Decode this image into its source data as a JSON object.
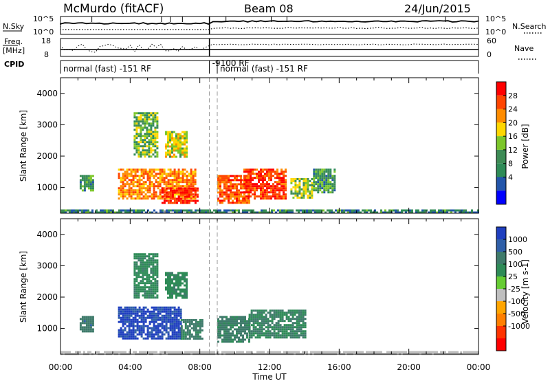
{
  "header": {
    "station": "McMurdo (fitACF)",
    "beam": "Beam 08",
    "date": "24/Jun/2015"
  },
  "top_panels": {
    "nsky_label": "N.Sky",
    "nsky_ticks": [
      "10^5",
      "10^0"
    ],
    "nsearch_label": "N.Search",
    "nsearch_ticks": [
      "10^5",
      "10^0"
    ],
    "freq_label": "Freq.",
    "freq_unit": "[MHz]",
    "freq_ticks": [
      "18",
      "8"
    ],
    "nave_label": "Nave",
    "nave_ticks": [
      "60",
      "0"
    ],
    "cpid_label": "CPID",
    "cpid_segments": [
      {
        "start_h": 0,
        "text": "normal (fast) -151 RF"
      },
      {
        "start_h": 8.55,
        "text": "-9100 RF"
      },
      {
        "start_h": 9.0,
        "text": "normal (fast) -151 RF"
      }
    ]
  },
  "colorbar_power": {
    "label": "Power [dB]",
    "ticks": [
      "28",
      "24",
      "20",
      "16",
      "12",
      "8",
      "4"
    ],
    "colors": [
      "#ff0000",
      "#ff4500",
      "#ff8c00",
      "#ffd700",
      "#7cc62a",
      "#3d8b55",
      "#2e8b57",
      "#2255aa",
      "#0000ff"
    ]
  },
  "colorbar_velocity": {
    "label": "Velocity [m s-1]",
    "ticks": [
      "1000",
      "500",
      "100",
      "25",
      "-25",
      "-100",
      "-500",
      "-1000"
    ],
    "colors": [
      "#1f3fbf",
      "#2f5fa8",
      "#3e7a6a",
      "#2e8b57",
      "#66cc33",
      "#bfbfbf",
      "#ffa500",
      "#ff7f00",
      "#ff3300",
      "#ff0000"
    ]
  },
  "chart_data": [
    {
      "type": "heatmap",
      "title": "Power [dB]",
      "xlabel": "Time UT",
      "ylabel": "Slant Range [km]",
      "x_ticks": [
        "00:00",
        "04:00",
        "08:00",
        "12:00",
        "16:00",
        "20:00",
        "00:00"
      ],
      "y_ticks": [
        "1000",
        "2000",
        "3000",
        "4000"
      ],
      "xlim_hours": [
        0,
        24
      ],
      "ylim_km": [
        180,
        4500
      ],
      "dashed_lines_hours": [
        8.55,
        9.0
      ],
      "echo_regions": [
        {
          "t0": 1.1,
          "t1": 1.9,
          "r0": 900,
          "r1": 1400,
          "value": 10
        },
        {
          "t0": 3.3,
          "t1": 7.8,
          "r0": 650,
          "r1": 1600,
          "value": 22
        },
        {
          "t0": 5.8,
          "t1": 7.9,
          "r0": 500,
          "r1": 1000,
          "value": 28
        },
        {
          "t0": 9.0,
          "t1": 10.8,
          "r0": 500,
          "r1": 1400,
          "value": 24
        },
        {
          "t0": 10.5,
          "t1": 12.9,
          "r0": 650,
          "r1": 1600,
          "value": 26
        },
        {
          "t0": 13.2,
          "t1": 14.4,
          "r0": 700,
          "r1": 1300,
          "value": 14
        },
        {
          "t0": 14.5,
          "t1": 15.8,
          "r0": 850,
          "r1": 1600,
          "value": 10
        },
        {
          "t0": 4.2,
          "t1": 5.6,
          "r0": 2000,
          "r1": 3400,
          "value": 12
        },
        {
          "t0": 6.0,
          "t1": 7.2,
          "r0": 2000,
          "r1": 2800,
          "value": 16
        },
        {
          "t0": 0.0,
          "t1": 24.0,
          "r0": 180,
          "r1": 300,
          "value": 8
        }
      ]
    },
    {
      "type": "heatmap",
      "title": "Velocity [m s-1]",
      "xlabel": "Time UT",
      "ylabel": "Slant Range [km]",
      "x_ticks": [
        "00:00",
        "04:00",
        "08:00",
        "12:00",
        "16:00",
        "20:00",
        "00:00"
      ],
      "y_ticks": [
        "1000",
        "2000",
        "3000",
        "4000"
      ],
      "xlim_hours": [
        0,
        24
      ],
      "ylim_km": [
        180,
        4500
      ],
      "dashed_lines_hours": [
        8.55,
        9.0
      ],
      "echo_regions": [
        {
          "t0": 1.1,
          "t1": 1.9,
          "r0": 900,
          "r1": 1400,
          "value": 300
        },
        {
          "t0": 3.3,
          "t1": 6.9,
          "r0": 700,
          "r1": 1700,
          "value": 900
        },
        {
          "t0": 6.9,
          "t1": 8.1,
          "r0": 700,
          "r1": 1300,
          "value": 200
        },
        {
          "t0": 9.0,
          "t1": 10.8,
          "r0": 600,
          "r1": 1400,
          "value": 200
        },
        {
          "t0": 10.8,
          "t1": 14.0,
          "r0": 700,
          "r1": 1600,
          "value": 150
        },
        {
          "t0": 4.2,
          "t1": 5.6,
          "r0": 2000,
          "r1": 3400,
          "value": 120
        },
        {
          "t0": 6.0,
          "t1": 7.2,
          "r0": 2000,
          "r1": 2800,
          "value": 120
        },
        {
          "t0": 0.0,
          "t1": 24.0,
          "r0": 180,
          "r1": 280,
          "value": 10
        }
      ]
    }
  ]
}
